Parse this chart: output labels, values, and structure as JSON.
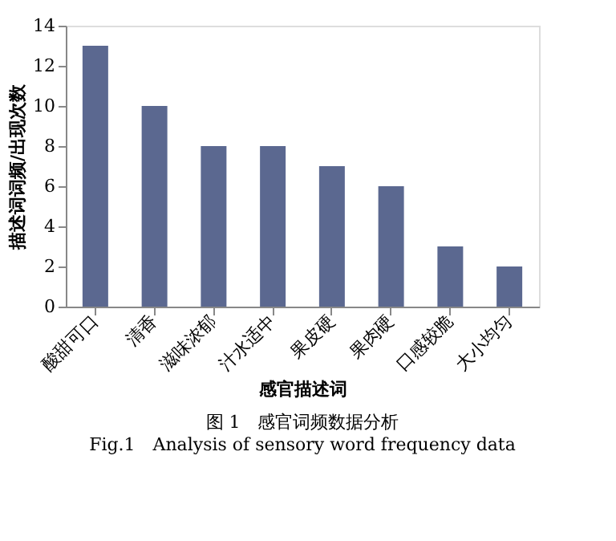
{
  "chart_data": {
    "type": "bar",
    "title": "图 1　感官词频数据分析",
    "subtitle": "Fig.1　Analysis of sensory word frequency data",
    "xlabel": "感官描述词",
    "ylabel": "描述词词频/出现次数",
    "categories": [
      "酸甜可口",
      "清香",
      "滋味浓郁",
      "汁水适中",
      "果皮硬",
      "果肉硬",
      "口感较脆",
      "大小均匀"
    ],
    "values": [
      13,
      10,
      8,
      8,
      7,
      6,
      3,
      2
    ],
    "color": "#5b6890",
    "ylim": [
      0,
      14
    ],
    "yticks": [
      0,
      2,
      4,
      6,
      8,
      10,
      12,
      14
    ],
    "grid": false
  }
}
